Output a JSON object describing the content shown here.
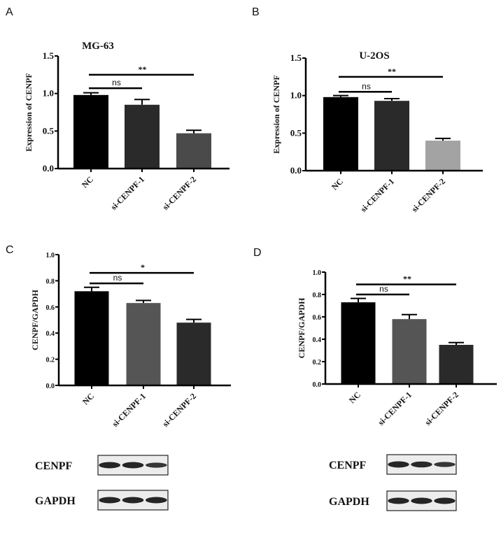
{
  "chart_data": [
    {
      "panel": "A",
      "type": "bar",
      "title": "MG-63",
      "xlabel": "",
      "ylabel": "Expression of  CENPF",
      "ylim": [
        0,
        1.5
      ],
      "yticks": [
        "0.0",
        "0.5",
        "1.0",
        "1.5"
      ],
      "ytick_values": [
        0,
        0.5,
        1.0,
        1.5
      ],
      "categories": [
        "NC",
        "si-CENPF-1",
        "si-CENPF-2"
      ],
      "values": [
        0.98,
        0.85,
        0.47
      ],
      "errors": [
        0.03,
        0.07,
        0.04
      ],
      "colors": [
        "#000000",
        "#2a2a2a",
        "#4a4a4a"
      ],
      "significance": [
        {
          "from": 0,
          "to": 1,
          "label": "ns",
          "level": 1.07
        },
        {
          "from": 0,
          "to": 2,
          "label": "**",
          "level": 1.25
        }
      ]
    },
    {
      "panel": "B",
      "type": "bar",
      "title": "U-2OS",
      "xlabel": "",
      "ylabel": "Expression of  CENPF",
      "ylim": [
        0,
        1.5
      ],
      "yticks": [
        "0.0",
        "0.5",
        "1.0",
        "1.5"
      ],
      "ytick_values": [
        0,
        0.5,
        1.0,
        1.5
      ],
      "categories": [
        "NC",
        "si-CENPF-1",
        "si-CENPF-2"
      ],
      "values": [
        0.98,
        0.93,
        0.4
      ],
      "errors": [
        0.02,
        0.03,
        0.03
      ],
      "colors": [
        "#000000",
        "#2a2a2a",
        "#a3a3a3"
      ],
      "significance": [
        {
          "from": 0,
          "to": 1,
          "label": "ns",
          "level": 1.05
        },
        {
          "from": 0,
          "to": 2,
          "label": "**",
          "level": 1.25
        }
      ]
    },
    {
      "panel": "C",
      "type": "bar",
      "title": "",
      "xlabel": "",
      "ylabel": "CENPF/GAPDH",
      "ylim": [
        0,
        1.0
      ],
      "yticks": [
        "0.0",
        "0.2",
        "0.4",
        "0.6",
        "0.8",
        "1.0"
      ],
      "ytick_values": [
        0,
        0.2,
        0.4,
        0.6,
        0.8,
        1.0
      ],
      "categories": [
        "NC",
        "si-CENPF-1",
        "si-CENPF-2"
      ],
      "values": [
        0.72,
        0.63,
        0.48
      ],
      "errors": [
        0.03,
        0.02,
        0.025
      ],
      "colors": [
        "#000000",
        "#555555",
        "#2a2a2a"
      ],
      "significance": [
        {
          "from": 0,
          "to": 1,
          "label": "ns",
          "level": 0.78
        },
        {
          "from": 0,
          "to": 2,
          "label": "*",
          "level": 0.86
        }
      ]
    },
    {
      "panel": "D",
      "type": "bar",
      "title": "",
      "xlabel": "",
      "ylabel": "CENPF/GAPDH",
      "ylim": [
        0,
        1.0
      ],
      "yticks": [
        "0.0",
        "0.2",
        "0.4",
        "0.6",
        "0.8",
        "1.0"
      ],
      "ytick_values": [
        0,
        0.2,
        0.4,
        0.6,
        0.8,
        1.0
      ],
      "categories": [
        "NC",
        "si-CENPF-1",
        "si-CENPF-2"
      ],
      "values": [
        0.73,
        0.58,
        0.35
      ],
      "errors": [
        0.035,
        0.04,
        0.02
      ],
      "colors": [
        "#000000",
        "#555555",
        "#2a2a2a"
      ],
      "significance": [
        {
          "from": 0,
          "to": 1,
          "label": "ns",
          "level": 0.8
        },
        {
          "from": 0,
          "to": 2,
          "label": "**",
          "level": 0.89
        }
      ]
    }
  ],
  "blots": [
    {
      "panel": "C",
      "rows": [
        {
          "label": "CENPF",
          "band_intensity": [
            1,
            1,
            0.8
          ]
        },
        {
          "label": "GAPDH",
          "band_intensity": [
            1,
            1,
            1
          ]
        }
      ]
    },
    {
      "panel": "D",
      "rows": [
        {
          "label": "CENPF",
          "band_intensity": [
            1,
            0.95,
            0.8
          ]
        },
        {
          "label": "GAPDH",
          "band_intensity": [
            1,
            1,
            1
          ]
        }
      ]
    }
  ]
}
